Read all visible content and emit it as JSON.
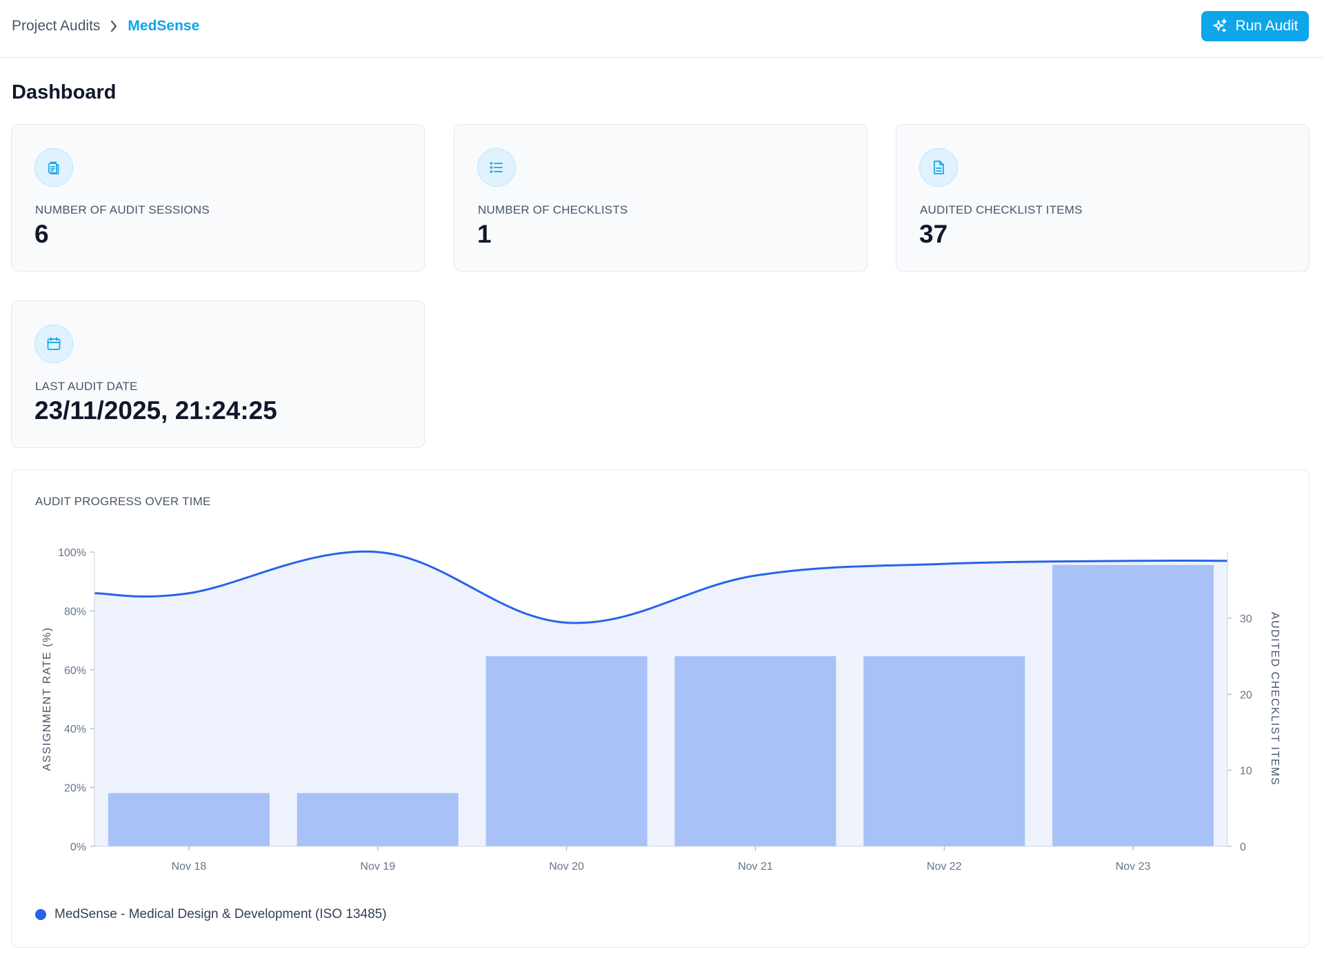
{
  "breadcrumb": {
    "parent": "Project Audits",
    "current": "MedSense"
  },
  "header": {
    "run_audit_label": "Run Audit"
  },
  "page": {
    "title": "Dashboard"
  },
  "stats": [
    {
      "icon": "clipboard-icon",
      "label": "NUMBER OF AUDIT SESSIONS",
      "value": "6"
    },
    {
      "icon": "list-icon",
      "label": "NUMBER OF CHECKLISTS",
      "value": "1"
    },
    {
      "icon": "document-icon",
      "label": "AUDITED CHECKLIST ITEMS",
      "value": "37"
    },
    {
      "icon": "calendar-icon",
      "label": "LAST AUDIT DATE",
      "value": "23/11/2025, 21:24:25"
    }
  ],
  "colors": {
    "accent": "#0ea5e9",
    "line": "#2563eb",
    "bar": "#a8c1f7",
    "area": "#eef2fc"
  },
  "chart_data": {
    "type": "bar",
    "title": "AUDIT PROGRESS OVER TIME",
    "categories": [
      "Nov 18",
      "Nov 19",
      "Nov 20",
      "Nov 21",
      "Nov 22",
      "Nov 23"
    ],
    "series": [
      {
        "name": "",
        "kind": "line",
        "axis": "left",
        "values": [
          86,
          100,
          76,
          92,
          96,
          97
        ]
      },
      {
        "name": "",
        "kind": "bar",
        "axis": "right",
        "values": [
          7,
          7,
          25,
          25,
          25,
          37
        ]
      }
    ],
    "ylabel_left": "ASSIGNMENT RATE (%)",
    "ylabel_right": "AUDITED CHECKLIST ITEMS",
    "ylim_left": [
      0,
      100
    ],
    "ylim_right": [
      0,
      38.7
    ],
    "yticks_left": [
      "0%",
      "20%",
      "40%",
      "60%",
      "80%",
      "100%"
    ],
    "yticks_right": [
      "0",
      "10",
      "20",
      "30"
    ],
    "legend": "MedSense - Medical Design & Development (ISO 13485)",
    "grid": false
  }
}
